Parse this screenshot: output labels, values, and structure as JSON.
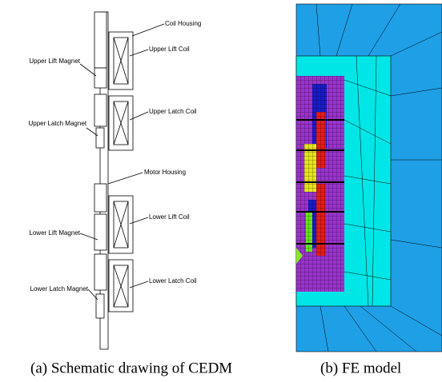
{
  "schematic": {
    "labels": [
      "Coil Housing",
      "Upper Lift Coil",
      "Upper Lift Magnet",
      "Upper Latch Coil",
      "Upper Latch Magnet",
      "Motor Housing",
      "Lower Lift Coil",
      "Lower Lift Magnet",
      "Lower Latch Coil",
      "Lower Latch Magnet"
    ],
    "caption": "(a) Schematic drawing of CEDM"
  },
  "fe_model": {
    "caption": "(b) FE model"
  }
}
